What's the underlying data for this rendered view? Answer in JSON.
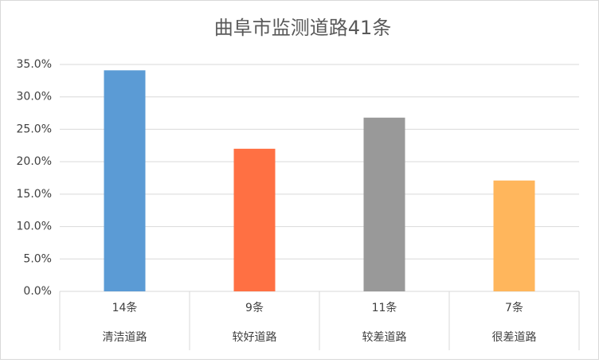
{
  "chart_data": {
    "type": "bar",
    "title": "曲阜市监测道路41条",
    "categories": [
      "14条",
      "9条",
      "11条",
      "7条"
    ],
    "groups": [
      "清洁道路",
      "较好道路",
      "较差道路",
      "很差道路"
    ],
    "values": [
      34.1,
      22.0,
      26.8,
      17.1
    ],
    "colors": [
      "#5b9bd5",
      "#ff7043",
      "#999999",
      "#ffb65c"
    ],
    "ylim": [
      0,
      35
    ],
    "yticks": [
      {
        "value": 0,
        "label": "0.0%"
      },
      {
        "value": 5,
        "label": "5.0%"
      },
      {
        "value": 10,
        "label": "10.0%"
      },
      {
        "value": 15,
        "label": "15.0%"
      },
      {
        "value": 20,
        "label": "20.0%"
      },
      {
        "value": 25,
        "label": "25.0%"
      },
      {
        "value": 30,
        "label": "30.0%"
      },
      {
        "value": 35,
        "label": "35.0%"
      }
    ],
    "grid": true
  }
}
